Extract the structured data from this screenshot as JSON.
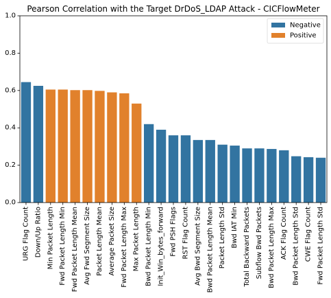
{
  "chart_data": {
    "type": "bar",
    "title": "Pearson Correlation with the Target DrDoS_LDAP Attack - CICFlowMeter",
    "xlabel": "",
    "ylabel": "",
    "ylim": [
      0,
      1.0
    ],
    "yticks": [
      "0.0",
      "0.2",
      "0.4",
      "0.6",
      "0.8",
      "1.0"
    ],
    "legend_position": "top-right",
    "grid": false,
    "legend": [
      {
        "name": "Negative",
        "color": "#3274a1"
      },
      {
        "name": "Positive",
        "color": "#e1812c"
      }
    ],
    "categories": [
      "URG Flag Count",
      "Down/Up Ratio",
      "Min Packet Length",
      "Fwd Packet Length Min",
      "Fwd Packet Length Mean",
      "Avg Fwd Segment Size",
      "Packet Length Mean",
      "Average Packet Size",
      "Fwd Packet Length Max",
      "Max Packet Length",
      "Bwd Packet Length Min",
      "Init_Win_bytes_forward",
      "Fwd PSH Flags",
      "RST Flag Count",
      "Avg Bwd Segment Size",
      "Bwd Packet Length Mean",
      "Packet Length Std",
      "Bwd IAT Min",
      "Total Backward Packets",
      "Subflow Bwd Packets",
      "Bwd Packet Length Max",
      "ACK Flag Count",
      "Bwd Packet Length Std",
      "CWE Flag Count",
      "Fwd Packet Length Std"
    ],
    "values": [
      0.645,
      0.625,
      0.605,
      0.605,
      0.602,
      0.602,
      0.598,
      0.59,
      0.585,
      0.53,
      0.42,
      0.39,
      0.36,
      0.36,
      0.335,
      0.335,
      0.31,
      0.305,
      0.29,
      0.29,
      0.287,
      0.28,
      0.248,
      0.243,
      0.24
    ],
    "sign": [
      "Negative",
      "Negative",
      "Positive",
      "Positive",
      "Positive",
      "Positive",
      "Positive",
      "Positive",
      "Positive",
      "Positive",
      "Negative",
      "Negative",
      "Negative",
      "Negative",
      "Negative",
      "Negative",
      "Negative",
      "Negative",
      "Negative",
      "Negative",
      "Negative",
      "Negative",
      "Negative",
      "Negative",
      "Negative"
    ]
  }
}
